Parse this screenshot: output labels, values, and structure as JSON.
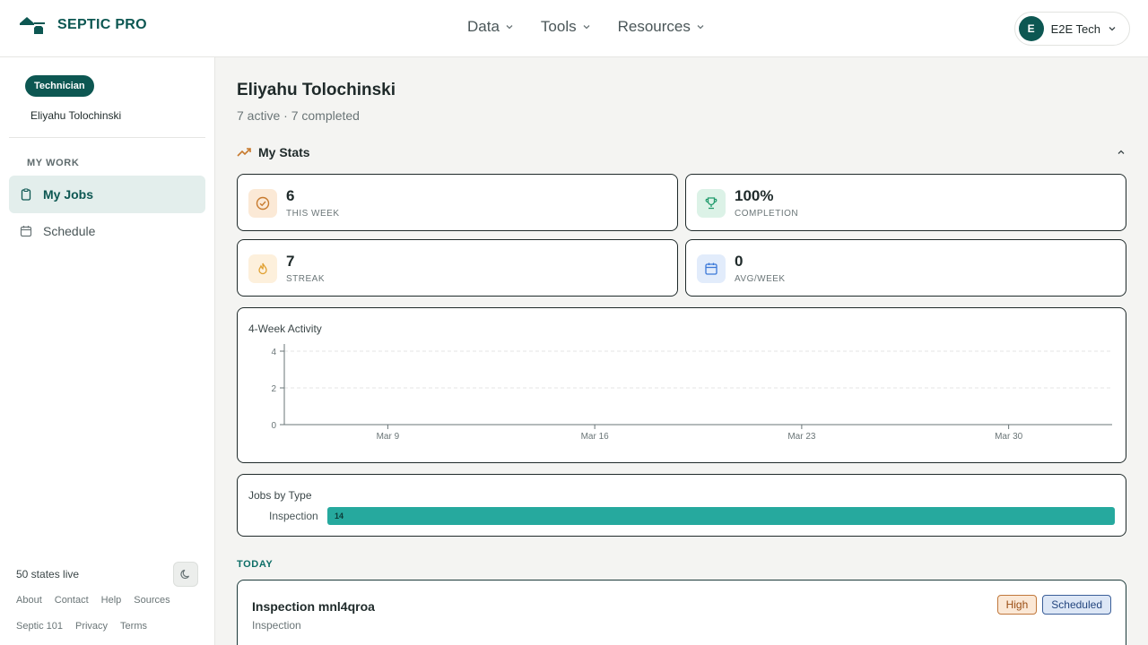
{
  "header": {
    "logo_text": "SEPTIC PRO",
    "nav": [
      {
        "label": "Data"
      },
      {
        "label": "Tools"
      },
      {
        "label": "Resources"
      }
    ],
    "user": {
      "initial": "E",
      "name": "E2E Tech"
    }
  },
  "sidebar": {
    "role_badge": "Technician",
    "user_name": "Eliyahu Tolochinski",
    "section_label": "MY WORK",
    "items": [
      {
        "label": "My Jobs",
        "icon": "clipboard-icon",
        "active": true
      },
      {
        "label": "Schedule",
        "icon": "calendar-icon",
        "active": false
      }
    ],
    "states_live": "50 states live",
    "footer_links_row1": [
      "About",
      "Contact",
      "Help",
      "Sources"
    ],
    "footer_links_row2": [
      "Septic 101",
      "Privacy",
      "Terms"
    ]
  },
  "main": {
    "tech_name": "Eliyahu Tolochinski",
    "summary": "7 active · 7 completed",
    "stats_title": "My Stats",
    "stats": [
      {
        "value": "6",
        "label": "THIS WEEK",
        "icon": "check-circle-icon",
        "color": "#c77a2e"
      },
      {
        "value": "100%",
        "label": "COMPLETION",
        "icon": "trophy-icon",
        "color": "#1f9a6b"
      },
      {
        "value": "7",
        "label": "STREAK",
        "icon": "flame-icon",
        "color": "#e0a030"
      },
      {
        "value": "0",
        "label": "AVG/WEEK",
        "icon": "calendar-icon",
        "color": "#3b78d8"
      }
    ],
    "activity_title": "4-Week Activity",
    "types_title": "Jobs by Type",
    "today_label": "TODAY",
    "job": {
      "title": "Inspection mnl4qroa",
      "type": "Inspection",
      "priority": "High",
      "status": "Scheduled"
    }
  },
  "chart_data": [
    {
      "type": "line",
      "title": "4-Week Activity",
      "x": [
        "Mar 9",
        "Mar 16",
        "Mar 23",
        "Mar 30"
      ],
      "ylim": [
        0,
        4
      ],
      "yticks": [
        0,
        2,
        4
      ],
      "series": [
        {
          "values": [
            0,
            0,
            0,
            0
          ]
        }
      ],
      "grid": true
    },
    {
      "type": "bar",
      "title": "Jobs by Type",
      "categories": [
        "Inspection"
      ],
      "values": [
        14
      ],
      "orientation": "horizontal",
      "color": "#26a99e"
    }
  ]
}
